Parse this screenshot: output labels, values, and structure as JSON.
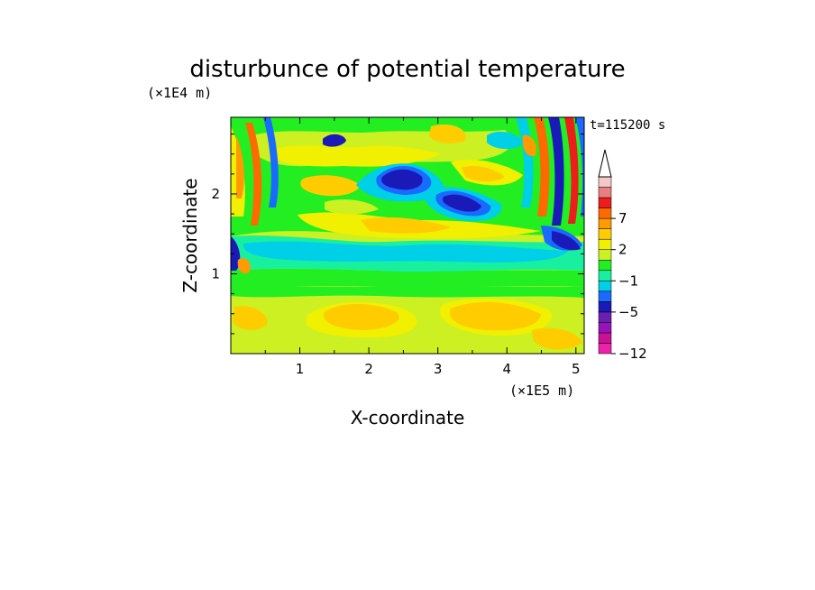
{
  "chart_data": {
    "type": "heatmap",
    "title": "disturbunce of potential temperature",
    "xlabel": "X-coordinate",
    "ylabel": "Z-coordinate",
    "x_unit": "(×1E5 m)",
    "z_unit": "(×1E4 m)",
    "time_label": "t=115200 s",
    "xlim": [
      0,
      5.12
    ],
    "ylim": [
      0,
      2.96
    ],
    "x_ticks": [
      "1",
      "2",
      "3",
      "4",
      "5"
    ],
    "y_ticks": [
      "1",
      "2"
    ],
    "colorbar": {
      "levels": [
        -12,
        -11,
        -9,
        -7,
        -5,
        -3,
        -2,
        -1,
        0,
        1,
        2,
        4,
        5,
        7,
        8,
        9,
        10
      ],
      "tick_labels": [
        "7",
        "2",
        "−1",
        "−5",
        "−12"
      ],
      "colors": [
        "#ee22aa",
        "#cc1199",
        "#9911bb",
        "#6a1fb0",
        "#1a1ab8",
        "#1a6aff",
        "#00cfe8",
        "#18f0a0",
        "#22ee22",
        "#ccf022",
        "#f0f000",
        "#ffcc00",
        "#ff9a00",
        "#ff6a00",
        "#ee1c1c",
        "#e88080",
        "#f5c8c8"
      ],
      "extend": "max"
    },
    "features": [
      {
        "desc": "negative anomaly",
        "x": 2.5,
        "z": 2.2,
        "value": -5
      },
      {
        "desc": "negative anomaly",
        "x": 3.35,
        "z": 1.85,
        "value": -5
      },
      {
        "desc": "negative layer",
        "x": 2.5,
        "z": 1.4,
        "value": -1
      },
      {
        "desc": "positive layer",
        "x": 2.5,
        "z": 0.55,
        "value": 2
      }
    ]
  }
}
